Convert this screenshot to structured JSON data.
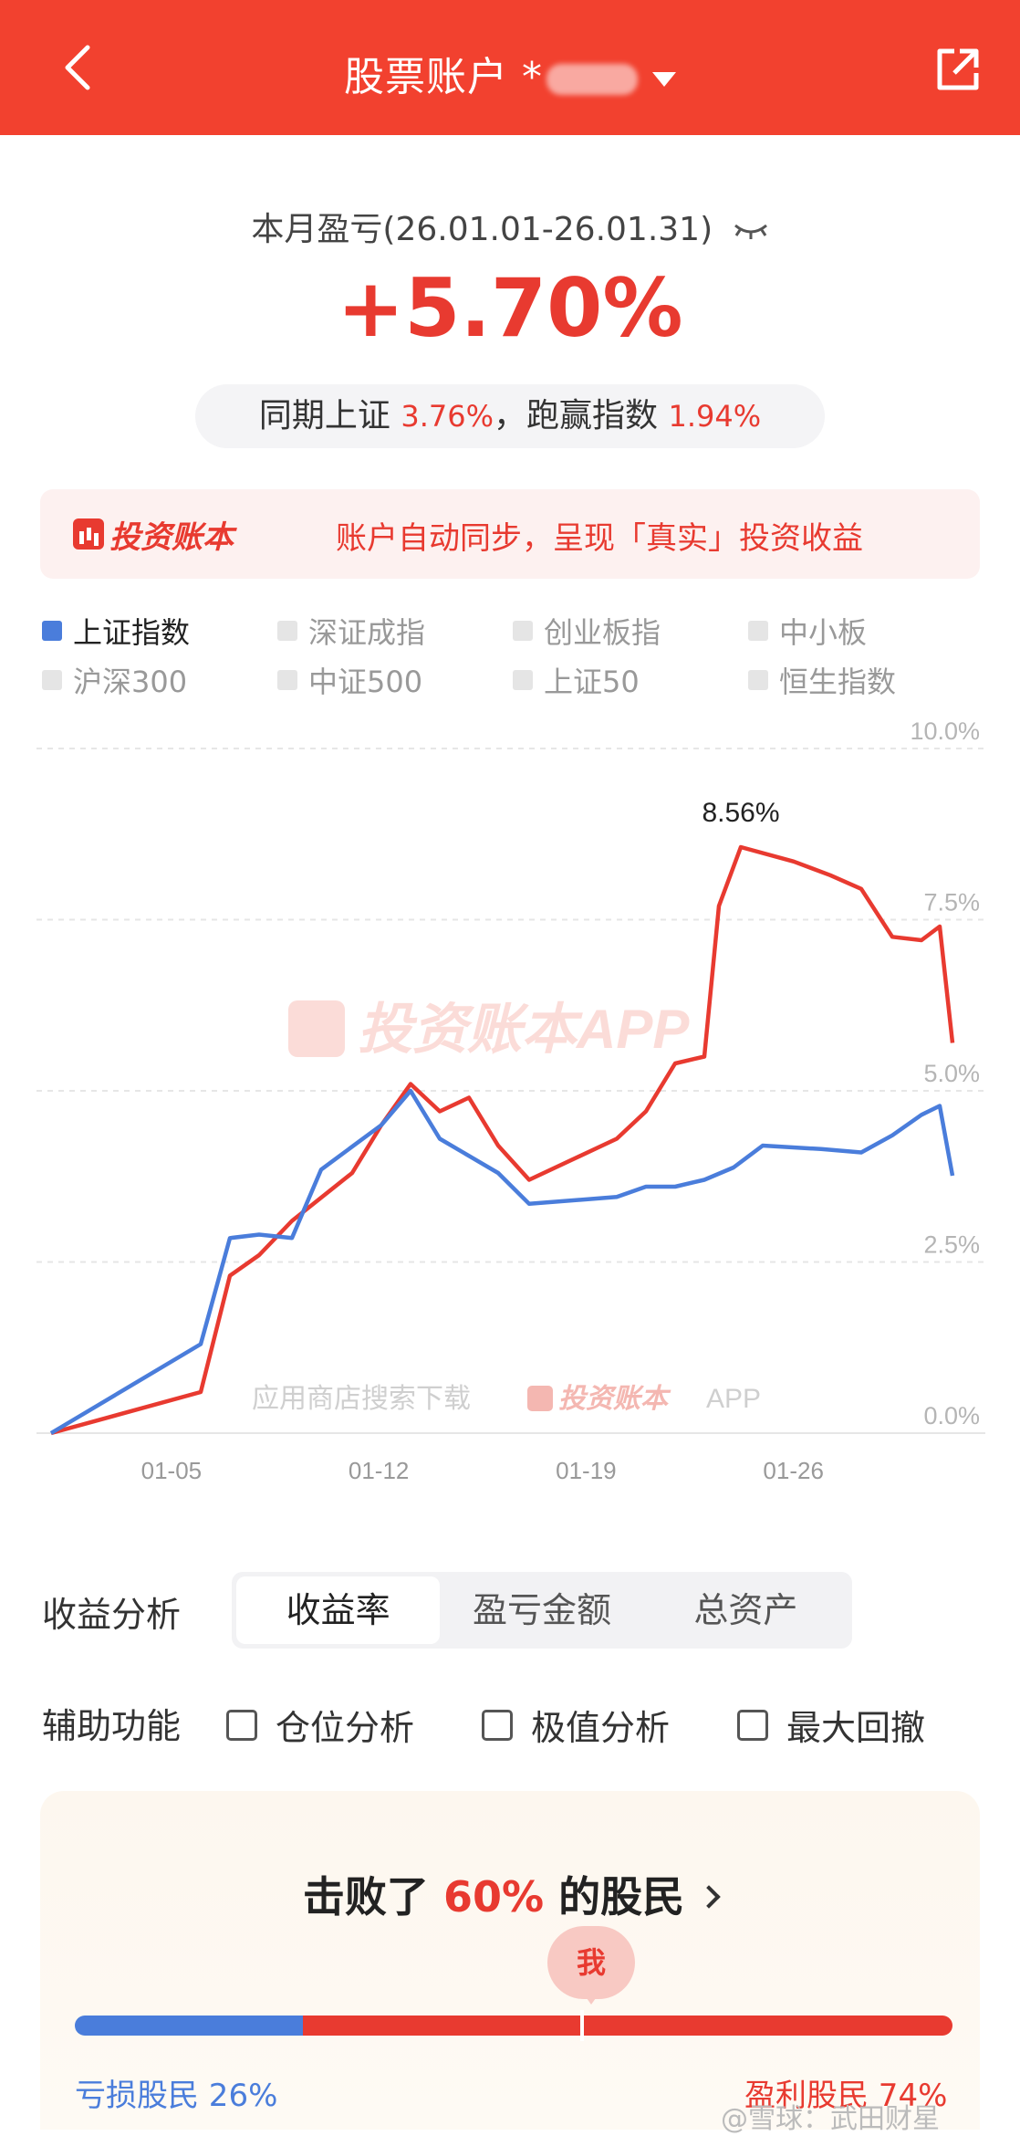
{
  "header": {
    "title": "股票账户 *",
    "back_icon": "chevron-left-icon",
    "share_icon": "share-external-icon"
  },
  "summary": {
    "period": "本月盈亏(26.01.01-26.01.31)",
    "pnl_percent": "+5.70%",
    "compare_prefix": "同期上证",
    "index_return": "3.76%",
    "compare_mid": "，跑赢指数",
    "outperform": "1.94%"
  },
  "banner": {
    "logo_text": "投资账本",
    "text": "账户自动同步，呈现「真实」投资收益"
  },
  "legend": [
    {
      "label": "上证指数",
      "active": true
    },
    {
      "label": "深证成指",
      "active": false
    },
    {
      "label": "创业板指",
      "active": false
    },
    {
      "label": "中小板",
      "active": false
    },
    {
      "label": "沪深300",
      "active": false
    },
    {
      "label": "中证500",
      "active": false
    },
    {
      "label": "上证50",
      "active": false
    },
    {
      "label": "恒生指数",
      "active": false
    }
  ],
  "chart_data": {
    "type": "line",
    "x_ticks": [
      "01-05",
      "01-12",
      "01-19",
      "01-26"
    ],
    "y_ticks": [
      "0.0%",
      "2.5%",
      "5.0%",
      "7.5%",
      "10.0%"
    ],
    "ylim": [
      0,
      10
    ],
    "peak_label": "8.56%",
    "watermark": "投资账本APP",
    "watermark2_prefix": "应用商店搜索下载",
    "watermark2_brand": "投资账本",
    "watermark2_suffix": "APP",
    "x_days": [
      1,
      6,
      7,
      8,
      9,
      10,
      11,
      12,
      13,
      14,
      15,
      16,
      17,
      18,
      19,
      20,
      21,
      22,
      23,
      24,
      25,
      26,
      27,
      28,
      29,
      30
    ],
    "series": [
      {
        "color": "#e83a30",
        "values": [
          0,
          0.6,
          2.3,
          2.6,
          3.1,
          3.8,
          4.5,
          5.1,
          4.7,
          4.9,
          4.2,
          3.7,
          4.3,
          4.7,
          5.4,
          5.5,
          7.7,
          8.56,
          8.35,
          8.15,
          7.95,
          7.25,
          7.2,
          7.4,
          5.7
        ],
        "x_index": [
          0,
          1,
          2,
          3,
          4,
          5,
          6,
          7,
          8,
          9,
          10,
          11,
          12,
          13,
          14,
          15,
          16,
          17,
          18,
          19,
          20,
          21,
          22,
          23,
          24
        ]
      },
      {
        "color": "#4a7ddb",
        "values": [
          0,
          1.3,
          2.85,
          2.9,
          2.85,
          3.85,
          4.5,
          5.0,
          4.3,
          3.8,
          3.35,
          3.45,
          3.6,
          3.6,
          3.7,
          3.88,
          4.2,
          4.15,
          4.1,
          4.35,
          4.65,
          4.78,
          3.76
        ],
        "x_index": [
          0,
          1,
          2,
          3,
          4,
          5,
          6,
          7,
          8,
          9,
          10,
          11,
          12,
          13,
          14,
          15,
          16,
          17,
          18,
          19,
          20,
          21,
          22
        ]
      }
    ]
  },
  "analysis": {
    "label": "收益分析",
    "tabs": [
      {
        "label": "收益率",
        "active": true
      },
      {
        "label": "盈亏金额",
        "active": false
      },
      {
        "label": "总资产",
        "active": false
      }
    ]
  },
  "aux": {
    "label": "辅助功能",
    "options": [
      "仓位分析",
      "极值分析",
      "最大回撤"
    ]
  },
  "beat": {
    "prefix": "击败了",
    "percent": "60%",
    "suffix": "的股民",
    "me": "我",
    "loss_label": "亏损股民 26%",
    "gain_label": "盈利股民 74%",
    "loss_fraction": 0.26,
    "watermark": "@雪球：武田财星"
  }
}
